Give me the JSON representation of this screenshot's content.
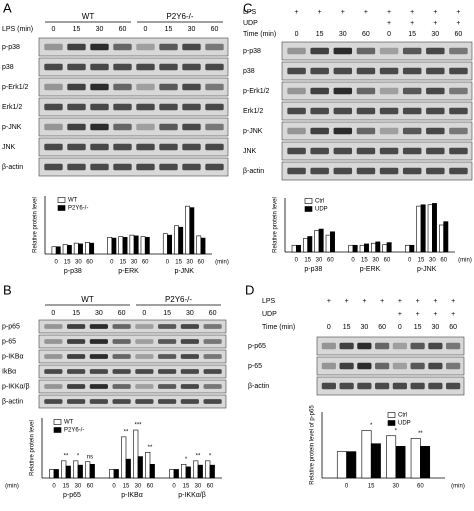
{
  "panels": [
    {
      "label": "A",
      "groups": [
        "WT",
        "P2Y6-/-"
      ],
      "condition_rows": [
        {
          "label": "LPS (min)",
          "cells": [
            "0",
            "15",
            "30",
            "60",
            "0",
            "15",
            "30",
            "60"
          ]
        }
      ],
      "blot_rows": [
        "p-p38",
        "p38",
        "p-Erk1/2",
        "Erk1/2",
        "p-JNK",
        "JNK",
        "β-actin"
      ],
      "chart": {
        "type": "bar",
        "y_label": "Relative protein level",
        "categories": [
          "0",
          "15",
          "30",
          "60",
          "0",
          "15",
          "30",
          "60",
          "0",
          "15",
          "30",
          "60"
        ],
        "groups": [
          "p-p38",
          "p-ERK",
          "p-JNK"
        ],
        "x_unit": "(min)",
        "ylim": [
          0,
          8
        ],
        "series": [
          {
            "name": "WT",
            "color": "#ffffff",
            "values": [
              1,
              1.3,
              1.5,
              1.6,
              2.3,
              2.4,
              2.6,
              2.4,
              2.8,
              3.9,
              6.6,
              2.5
            ]
          },
          {
            "name": "P2Y6-/-",
            "color": "#000000",
            "values": [
              1,
              1.2,
              1.4,
              1.5,
              2.2,
              2.3,
              2.5,
              2.3,
              2.6,
              3.7,
              6.4,
              2.2
            ]
          }
        ]
      }
    },
    {
      "label": "B",
      "groups": [
        "WT",
        "P2Y6-/-"
      ],
      "condition_rows": [
        {
          "cells": [
            "0",
            "15",
            "30",
            "60",
            "0",
            "15",
            "30",
            "60"
          ]
        }
      ],
      "blot_rows": [
        "p-p65",
        "p-65",
        "p-IKBα",
        "IkBα",
        "p-IKKα/β",
        "β-actin"
      ],
      "chart": {
        "type": "bar",
        "y_label": "Relative protein level",
        "categories": [
          "0",
          "15",
          "30",
          "60",
          "0",
          "15",
          "30",
          "60",
          "0",
          "15",
          "30",
          "60"
        ],
        "groups": [
          "p-p65",
          "p-IKBα",
          "p-IKKα/β"
        ],
        "x_unit": "(min)",
        "ylim": [
          0,
          7
        ],
        "significance": [
          null,
          "**",
          "*",
          "ns",
          null,
          "**",
          "***",
          "**",
          null,
          "*",
          "**",
          "*"
        ],
        "series": [
          {
            "name": "WT",
            "color": "#ffffff",
            "values": [
              1,
              2.0,
              2.0,
              1.9,
              1,
              4.8,
              5.6,
              3.0,
              1,
              1.6,
              2.0,
              2.0
            ]
          },
          {
            "name": "P2Y6-/-",
            "color": "#000000",
            "values": [
              1,
              1.4,
              1.5,
              1.6,
              1,
              2.2,
              2.5,
              1.6,
              1,
              1.3,
              1.5,
              1.5
            ]
          }
        ]
      }
    },
    {
      "label": "C",
      "condition_rows": [
        {
          "label": "LPS",
          "cells": [
            "+",
            "+",
            "+",
            "+",
            "+",
            "+",
            "+",
            "+"
          ]
        },
        {
          "label": "UDP",
          "cells": [
            null,
            null,
            null,
            null,
            "+",
            "+",
            "+",
            "+"
          ]
        },
        {
          "label": "Time (min)",
          "cells": [
            "0",
            "15",
            "30",
            "60",
            "0",
            "15",
            "30",
            "60"
          ]
        }
      ],
      "blot_rows": [
        "p-p38",
        "p38",
        "p-Erk1/2",
        "Erk1/2",
        "p-JNK",
        "JNK",
        "β-actin"
      ],
      "chart": {
        "type": "bar",
        "y_label": "Relative protein level",
        "categories": [
          "0",
          "15",
          "30",
          "60",
          "0",
          "15",
          "30",
          "60",
          "0",
          "15",
          "30",
          "60"
        ],
        "groups": [
          "p-p38",
          "p-ERK",
          "p-JNK"
        ],
        "x_unit": "(min)",
        "ylim": [
          0,
          8
        ],
        "series": [
          {
            "name": "Ctrl",
            "color": "#ffffff",
            "values": [
              1,
              2.0,
              3.2,
              2.5,
              1,
              1.0,
              1.3,
              1.1,
              1,
              6.8,
              7.0,
              4.0
            ]
          },
          {
            "name": "UDP",
            "color": "#000000",
            "values": [
              1,
              2.3,
              3.4,
              3.0,
              1,
              1.2,
              1.5,
              1.4,
              1,
              7.0,
              7.2,
              4.5
            ]
          }
        ]
      }
    },
    {
      "label": "D",
      "condition_rows": [
        {
          "label": "LPS",
          "cells": [
            "+",
            "+",
            "+",
            "+",
            "+",
            "+",
            "+",
            "+"
          ]
        },
        {
          "label": "UDP",
          "cells": [
            null,
            null,
            null,
            null,
            "+",
            "+",
            "+",
            "+"
          ]
        },
        {
          "label": "Time (min)",
          "cells": [
            "0",
            "15",
            "30",
            "60",
            "0",
            "15",
            "30",
            "60"
          ]
        }
      ],
      "blot_rows": [
        "p-p65",
        "p-65",
        "β-actin"
      ],
      "chart": {
        "type": "bar",
        "y_label": "Relative protein level of p-p65",
        "categories": [
          "0",
          "15",
          "30",
          "60"
        ],
        "x_unit": "(min)",
        "ylim": [
          0,
          2.5
        ],
        "significance": [
          null,
          "*",
          "*",
          "**"
        ],
        "series": [
          {
            "name": "Ctrl",
            "color": "#ffffff",
            "values": [
              1,
              1.8,
              1.6,
              1.5
            ]
          },
          {
            "name": "UDP",
            "color": "#000000",
            "values": [
              1,
              1.3,
              1.2,
              1.2
            ]
          }
        ]
      }
    }
  ]
}
